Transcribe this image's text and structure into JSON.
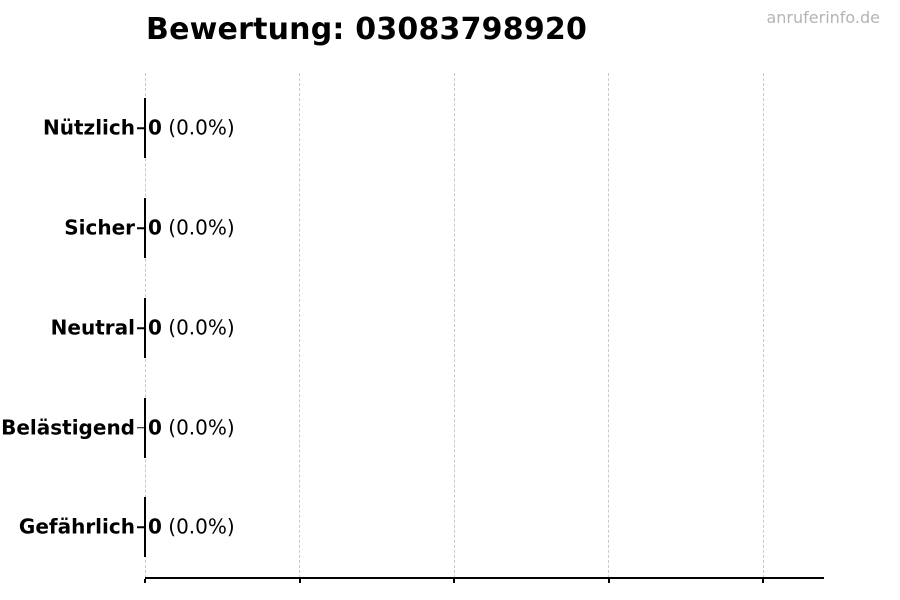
{
  "watermark": "anruferinfo.de",
  "chart_data": {
    "type": "bar",
    "orientation": "horizontal",
    "title": "Bewertung: 03083798920",
    "categories": [
      "Nützlich",
      "Sicher",
      "Neutral",
      "Belästigend",
      "Gefährlich"
    ],
    "values": [
      0,
      0,
      0,
      0,
      0
    ],
    "percent_labels": [
      "0.0%",
      "0.0%",
      "0.0%",
      "0.0%",
      "0.0%"
    ],
    "value_label_format": "{value} ({percent})",
    "xlabel": "",
    "ylabel": "",
    "xlim": [
      0,
      1
    ],
    "x_tick_labels": [
      "",
      "",
      "",
      "",
      ""
    ],
    "grid": true,
    "grid_style": "dashed-vertical",
    "legend": "none",
    "colors": {
      "background": "#ffffff",
      "text": "#000000",
      "axis": "#000000",
      "grid": "#c9c9c9",
      "watermark": "#b4b4b4"
    }
  }
}
